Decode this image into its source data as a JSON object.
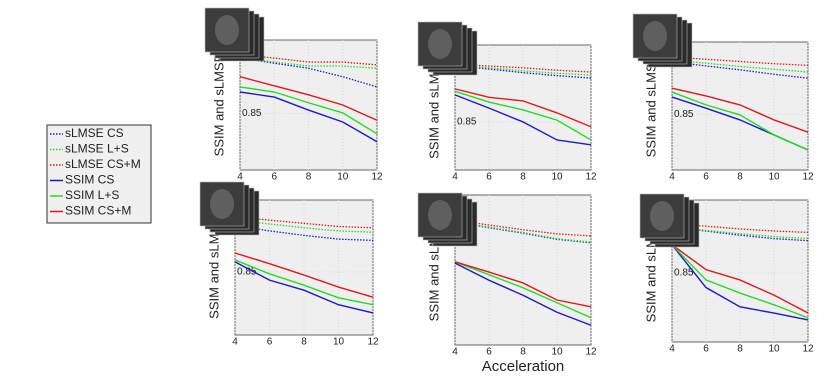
{
  "chart_data": [
    {
      "type": "line",
      "ylabel": "SSIM and sLMSE",
      "x": [
        4,
        6,
        8,
        10,
        12
      ],
      "xlim": [
        4,
        12
      ],
      "xticks": [
        4,
        6,
        8,
        10,
        12
      ],
      "ylim": [
        0.75,
        0.98
      ],
      "yticks": [
        0.85
      ],
      "grid": true,
      "legend": "outside-left",
      "series": [
        {
          "name": "sLMSE CS",
          "color": "#1a1acc",
          "style": "dotted",
          "values": [
            0.948,
            0.939,
            0.93,
            0.915,
            0.897
          ]
        },
        {
          "name": "sLMSE L+S",
          "color": "#22dd22",
          "style": "dotted",
          "values": [
            0.95,
            0.941,
            0.934,
            0.934,
            0.93
          ]
        },
        {
          "name": "sLMSE CS+M",
          "color": "#e01818",
          "style": "dotted",
          "values": [
            0.954,
            0.948,
            0.941,
            0.941,
            0.936
          ]
        },
        {
          "name": "SSIM CS",
          "color": "#1a1acc",
          "style": "solid",
          "values": [
            0.888,
            0.879,
            0.856,
            0.835,
            0.8
          ]
        },
        {
          "name": "SSIM L+S",
          "color": "#22dd22",
          "style": "solid",
          "values": [
            0.897,
            0.888,
            0.869,
            0.851,
            0.814
          ]
        },
        {
          "name": "SSIM CS+M",
          "color": "#e01818",
          "style": "solid",
          "values": [
            0.915,
            0.899,
            0.883,
            0.865,
            0.838
          ]
        }
      ]
    },
    {
      "type": "line",
      "ylabel": "SSIM and sLMSE",
      "x": [
        4,
        6,
        8,
        10,
        12
      ],
      "xlim": [
        4,
        12
      ],
      "xticks": [
        4,
        6,
        8,
        10,
        12
      ],
      "ylim": [
        0.77,
        0.978
      ],
      "yticks": [
        0.85
      ],
      "grid": true,
      "series": [
        {
          "name": "sLMSE CS",
          "color": "#1a1acc",
          "style": "dotted",
          "values": [
            0.943,
            0.938,
            0.932,
            0.927,
            0.923
          ]
        },
        {
          "name": "sLMSE L+S",
          "color": "#22dd22",
          "style": "dotted",
          "values": [
            0.945,
            0.94,
            0.935,
            0.931,
            0.928
          ]
        },
        {
          "name": "sLMSE CS+M",
          "color": "#e01818",
          "style": "dotted",
          "values": [
            0.946,
            0.943,
            0.94,
            0.936,
            0.933
          ]
        },
        {
          "name": "SSIM CS",
          "color": "#1a1acc",
          "style": "solid",
          "values": [
            0.895,
            0.873,
            0.85,
            0.82,
            0.812
          ]
        },
        {
          "name": "SSIM L+S",
          "color": "#22dd22",
          "style": "solid",
          "values": [
            0.901,
            0.883,
            0.87,
            0.853,
            0.82
          ]
        },
        {
          "name": "SSIM CS+M",
          "color": "#e01818",
          "style": "solid",
          "values": [
            0.905,
            0.891,
            0.885,
            0.865,
            0.842
          ]
        }
      ]
    },
    {
      "type": "line",
      "ylabel": "SSIM and sLMSE",
      "x": [
        4,
        6,
        8,
        10,
        12
      ],
      "xlim": [
        4,
        12
      ],
      "xticks": [
        4,
        6,
        8,
        10,
        12
      ],
      "ylim": [
        0.75,
        0.98
      ],
      "yticks": [
        0.85
      ],
      "grid": true,
      "series": [
        {
          "name": "sLMSE CS",
          "color": "#1a1acc",
          "style": "dotted",
          "values": [
            0.944,
            0.937,
            0.93,
            0.922,
            0.915
          ]
        },
        {
          "name": "sLMSE L+S",
          "color": "#22dd22",
          "style": "dotted",
          "values": [
            0.947,
            0.942,
            0.936,
            0.931,
            0.926
          ]
        },
        {
          "name": "sLMSE CS+M",
          "color": "#e01818",
          "style": "dotted",
          "values": [
            0.953,
            0.949,
            0.945,
            0.941,
            0.938
          ]
        },
        {
          "name": "SSIM CS",
          "color": "#1a1acc",
          "style": "solid",
          "values": [
            0.881,
            0.861,
            0.84,
            0.813,
            0.786
          ]
        },
        {
          "name": "SSIM L+S",
          "color": "#22dd22",
          "style": "solid",
          "values": [
            0.89,
            0.867,
            0.849,
            0.813,
            0.786
          ]
        },
        {
          "name": "SSIM CS+M",
          "color": "#e01818",
          "style": "solid",
          "values": [
            0.897,
            0.883,
            0.867,
            0.84,
            0.818
          ]
        }
      ]
    },
    {
      "type": "line",
      "ylabel": "SSIM and sLMSE",
      "x": [
        4,
        6,
        8,
        10,
        12
      ],
      "xlim": [
        4,
        12
      ],
      "xticks": [
        4,
        6,
        8,
        10,
        12
      ],
      "ylim": [
        0.75,
        0.964
      ],
      "yticks": [
        0.85
      ],
      "grid": true,
      "series": [
        {
          "name": "sLMSE CS",
          "color": "#1a1acc",
          "style": "dotted",
          "values": [
            0.924,
            0.915,
            0.908,
            0.902,
            0.9
          ]
        },
        {
          "name": "sLMSE L+S",
          "color": "#22dd22",
          "style": "dotted",
          "values": [
            0.932,
            0.926,
            0.92,
            0.915,
            0.913
          ]
        },
        {
          "name": "sLMSE CS+M",
          "color": "#e01818",
          "style": "dotted",
          "values": [
            0.937,
            0.932,
            0.927,
            0.922,
            0.92
          ]
        },
        {
          "name": "SSIM CS",
          "color": "#1a1acc",
          "style": "solid",
          "values": [
            0.866,
            0.837,
            0.821,
            0.798,
            0.785
          ]
        },
        {
          "name": "SSIM L+S",
          "color": "#22dd22",
          "style": "solid",
          "values": [
            0.869,
            0.847,
            0.829,
            0.809,
            0.798
          ]
        },
        {
          "name": "SSIM CS+M",
          "color": "#e01818",
          "style": "solid",
          "values": [
            0.88,
            0.863,
            0.845,
            0.826,
            0.81
          ]
        }
      ]
    },
    {
      "type": "line",
      "ylabel": "SSIM and sLMSE",
      "xlabel": "Acceleration",
      "x": [
        4,
        6,
        8,
        10,
        12
      ],
      "xlim": [
        4,
        12
      ],
      "xticks": [
        4,
        6,
        8,
        10,
        12
      ],
      "ylim": [
        0.75,
        0.97
      ],
      "yticks": [],
      "grid": true,
      "series": [
        {
          "name": "sLMSE CS",
          "color": "#1a1acc",
          "style": "dotted",
          "values": [
            0.93,
            0.922,
            0.914,
            0.905,
            0.9
          ]
        },
        {
          "name": "sLMSE L+S",
          "color": "#22dd22",
          "style": "dotted",
          "values": [
            0.93,
            0.923,
            0.915,
            0.906,
            0.901
          ]
        },
        {
          "name": "sLMSE CS+M",
          "color": "#e01818",
          "style": "dotted",
          "values": [
            0.933,
            0.926,
            0.919,
            0.913,
            0.91
          ]
        },
        {
          "name": "SSIM CS",
          "color": "#1a1acc",
          "style": "solid",
          "values": [
            0.87,
            0.845,
            0.823,
            0.798,
            0.779
          ]
        },
        {
          "name": "SSIM L+S",
          "color": "#22dd22",
          "style": "solid",
          "values": [
            0.872,
            0.853,
            0.834,
            0.812,
            0.79
          ]
        },
        {
          "name": "SSIM CS+M",
          "color": "#e01818",
          "style": "solid",
          "values": [
            0.872,
            0.857,
            0.841,
            0.816,
            0.806
          ]
        }
      ]
    },
    {
      "type": "line",
      "ylabel": "SSIM and sLMSE",
      "x": [
        4,
        6,
        8,
        10,
        12
      ],
      "xlim": [
        4,
        12
      ],
      "xticks": [
        4,
        6,
        8,
        10,
        12
      ],
      "ylim": [
        0.75,
        0.956
      ],
      "yticks": [
        0.85
      ],
      "grid": true,
      "series": [
        {
          "name": "sLMSE CS",
          "color": "#1a1acc",
          "style": "dotted",
          "values": [
            0.917,
            0.911,
            0.905,
            0.9,
            0.897
          ]
        },
        {
          "name": "sLMSE L+S",
          "color": "#22dd22",
          "style": "dotted",
          "values": [
            0.917,
            0.912,
            0.907,
            0.903,
            0.9
          ]
        },
        {
          "name": "sLMSE CS+M",
          "color": "#e01818",
          "style": "dotted",
          "values": [
            0.922,
            0.918,
            0.914,
            0.911,
            0.909
          ]
        },
        {
          "name": "SSIM CS",
          "color": "#1a1acc",
          "style": "solid",
          "values": [
            0.891,
            0.829,
            0.801,
            0.792,
            0.782
          ]
        },
        {
          "name": "SSIM L+S",
          "color": "#22dd22",
          "style": "solid",
          "values": [
            0.891,
            0.84,
            0.821,
            0.804,
            0.785
          ]
        },
        {
          "name": "SSIM CS+M",
          "color": "#e01818",
          "style": "solid",
          "values": [
            0.891,
            0.855,
            0.84,
            0.818,
            0.792
          ]
        }
      ]
    }
  ]
}
